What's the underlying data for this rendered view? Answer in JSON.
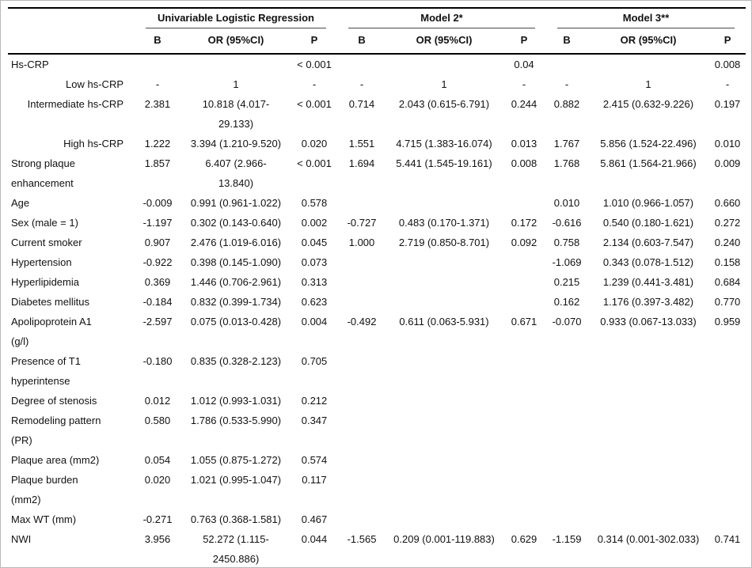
{
  "page": {
    "background": "#ffffff",
    "frame_border": "#b8b8b8",
    "rule_color": "#000000",
    "text_color": "#111111"
  },
  "table": {
    "groups": [
      {
        "label": "Univariable Logistic Regression"
      },
      {
        "label": "Model 2*"
      },
      {
        "label": "Model 3**"
      }
    ],
    "subheaders": [
      "B",
      "OR (95%CI)",
      "P"
    ],
    "rows": [
      {
        "label": "Hs-CRP",
        "indent": false,
        "cells": [
          "",
          "",
          "< 0.001",
          "",
          "",
          "0.04",
          "",
          "",
          "0.008"
        ]
      },
      {
        "label": "Low hs-CRP",
        "indent": true,
        "cells": [
          "-",
          "1",
          "-",
          "-",
          "1",
          "-",
          "-",
          "1",
          "-"
        ]
      },
      {
        "label": "Intermediate hs-CRP",
        "indent": true,
        "cells": [
          "2.381",
          "10.818 (4.017-\n29.133)",
          "< 0.001",
          "0.714",
          "2.043 (0.615-6.791)",
          "0.244",
          "0.882",
          "2.415 (0.632-9.226)",
          "0.197"
        ]
      },
      {
        "label": "High hs-CRP",
        "indent": true,
        "cells": [
          "1.222",
          "3.394 (1.210-9.520)",
          "0.020",
          "1.551",
          "4.715 (1.383-16.074)",
          "0.013",
          "1.767",
          "5.856 (1.524-22.496)",
          "0.010"
        ]
      },
      {
        "label": "Strong plaque\nenhancement",
        "indent": false,
        "cells": [
          "1.857",
          "6.407 (2.966-\n13.840)",
          "< 0.001",
          "1.694",
          "5.441 (1.545-19.161)",
          "0.008",
          "1.768",
          "5.861 (1.564-21.966)",
          "0.009"
        ]
      },
      {
        "label": "Age",
        "indent": false,
        "cells": [
          "-0.009",
          "0.991 (0.961-1.022)",
          "0.578",
          "",
          "",
          "",
          "0.010",
          "1.010 (0.966-1.057)",
          "0.660"
        ]
      },
      {
        "label": "Sex (male = 1)",
        "indent": false,
        "cells": [
          "-1.197",
          "0.302 (0.143-0.640)",
          "0.002",
          "-0.727",
          "0.483 (0.170-1.371)",
          "0.172",
          "-0.616",
          "0.540 (0.180-1.621)",
          "0.272"
        ]
      },
      {
        "label": "Current smoker",
        "indent": false,
        "cells": [
          "0.907",
          "2.476 (1.019-6.016)",
          "0.045",
          "1.000",
          "2.719 (0.850-8.701)",
          "0.092",
          "0.758",
          "2.134 (0.603-7.547)",
          "0.240"
        ]
      },
      {
        "label": "Hypertension",
        "indent": false,
        "cells": [
          "-0.922",
          "0.398 (0.145-1.090)",
          "0.073",
          "",
          "",
          "",
          "-1.069",
          "0.343 (0.078-1.512)",
          "0.158"
        ]
      },
      {
        "label": "Hyperlipidemia",
        "indent": false,
        "cells": [
          "0.369",
          "1.446 (0.706-2.961)",
          "0.313",
          "",
          "",
          "",
          "0.215",
          "1.239 (0.441-3.481)",
          "0.684"
        ]
      },
      {
        "label": "Diabetes mellitus",
        "indent": false,
        "cells": [
          "-0.184",
          "0.832 (0.399-1.734)",
          "0.623",
          "",
          "",
          "",
          "0.162",
          "1.176 (0.397-3.482)",
          "0.770"
        ]
      },
      {
        "label": "Apolipoprotein A1\n(g/l)",
        "indent": false,
        "cells": [
          "-2.597",
          "0.075 (0.013-0.428)",
          "0.004",
          "-0.492",
          "0.611 (0.063-5.931)",
          "0.671",
          "-0.070",
          "0.933 (0.067-13.033)",
          "0.959"
        ]
      },
      {
        "label": "Presence of T1\nhyperintense",
        "indent": false,
        "cells": [
          "-0.180",
          "0.835 (0.328-2.123)",
          "0.705",
          "",
          "",
          "",
          "",
          "",
          ""
        ]
      },
      {
        "label": "Degree of stenosis",
        "indent": false,
        "cells": [
          "0.012",
          "1.012 (0.993-1.031)",
          "0.212",
          "",
          "",
          "",
          "",
          "",
          ""
        ]
      },
      {
        "label": "Remodeling pattern\n(PR)",
        "indent": false,
        "cells": [
          "0.580",
          "1.786 (0.533-5.990)",
          "0.347",
          "",
          "",
          "",
          "",
          "",
          ""
        ]
      },
      {
        "label": "Plaque area (mm2)",
        "indent": false,
        "cells": [
          "0.054",
          "1.055 (0.875-1.272)",
          "0.574",
          "",
          "",
          "",
          "",
          "",
          ""
        ]
      },
      {
        "label": "Plaque burden\n(mm2)",
        "indent": false,
        "cells": [
          "0.020",
          "1.021 (0.995-1.047)",
          "0.117",
          "",
          "",
          "",
          "",
          "",
          ""
        ]
      },
      {
        "label": "Max WT (mm)",
        "indent": false,
        "cells": [
          "-0.271",
          "0.763 (0.368-1.581)",
          "0.467",
          "",
          "",
          "",
          "",
          "",
          ""
        ]
      },
      {
        "label": "NWI",
        "indent": false,
        "cells": [
          "3.956",
          "52.272 (1.115-\n2450.886)",
          "0.044",
          "-1.565",
          "0.209 (0.001-119.883)",
          "0.629",
          "-1.159",
          "0.314 (0.001-302.033)",
          "0.741"
        ]
      }
    ]
  }
}
